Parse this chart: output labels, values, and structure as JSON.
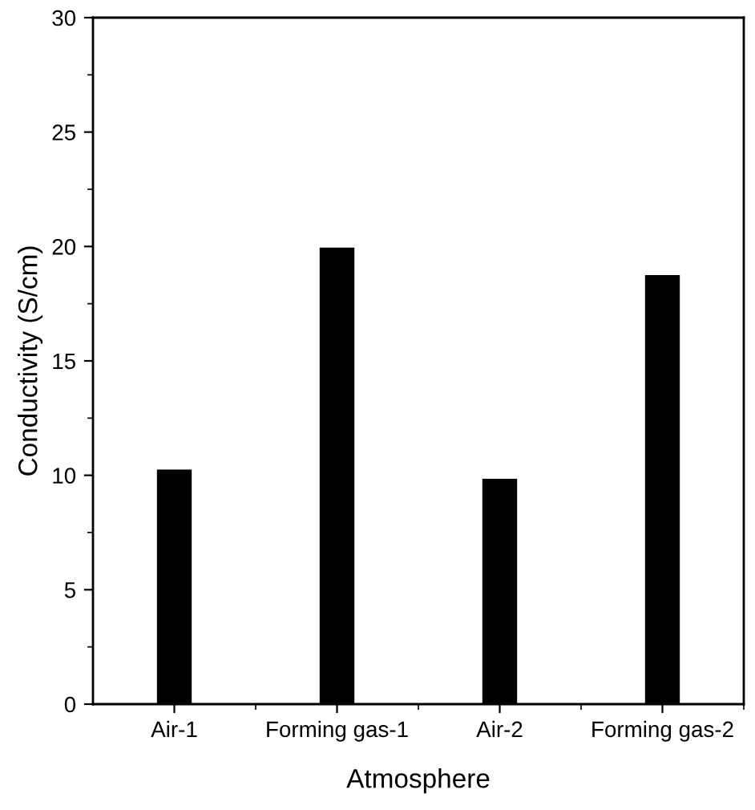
{
  "chart_data": {
    "type": "bar",
    "xlabel": "Atmosphere",
    "ylabel": "Conductivity (S/cm)",
    "categories": [
      "Air-1",
      "Forming gas-1",
      "Air-2",
      "Forming gas-2"
    ],
    "values": [
      10.2,
      19.9,
      9.8,
      18.7
    ],
    "color": "#000000",
    "ylim": [
      0,
      30
    ],
    "yticks": [
      0,
      5,
      10,
      15,
      20,
      25,
      30
    ],
    "grid": false,
    "legend": false
  }
}
